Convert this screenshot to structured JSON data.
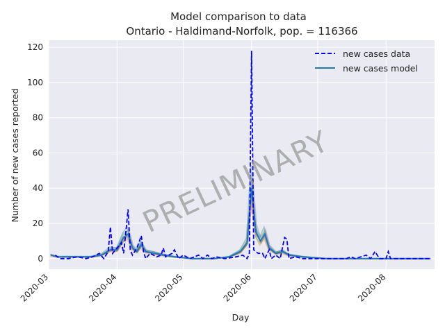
{
  "chart_data": {
    "type": "line",
    "title_line1": "Model comparison to data",
    "title_line2": "Ontario - Haldimand-Norfolk, pop. = 116366",
    "xlabel": "Day",
    "ylabel": "Number of new cases reported",
    "watermark": "PRELIMINARY",
    "x_range": [
      "2020-03-01",
      "2020-08-23"
    ],
    "ylim": [
      -6,
      124
    ],
    "x_ticks": [
      {
        "date": "2020-03-01",
        "label": "2020-03"
      },
      {
        "date": "2020-04-01",
        "label": "2020-04"
      },
      {
        "date": "2020-05-01",
        "label": "2020-05"
      },
      {
        "date": "2020-06-01",
        "label": "2020-06"
      },
      {
        "date": "2020-07-01",
        "label": "2020-07"
      },
      {
        "date": "2020-08-01",
        "label": "2020-08"
      }
    ],
    "y_ticks": [
      0,
      20,
      40,
      60,
      80,
      100,
      120
    ],
    "grid": true,
    "legend_position": "top-right",
    "series": [
      {
        "name": "new cases data",
        "style": "dashed",
        "color": "#0000ff",
        "points": [
          [
            "2020-03-04",
            2
          ],
          [
            "2020-03-06",
            0
          ],
          [
            "2020-03-10",
            0
          ],
          [
            "2020-03-14",
            1
          ],
          [
            "2020-03-18",
            0
          ],
          [
            "2020-03-21",
            1
          ],
          [
            "2020-03-24",
            3
          ],
          [
            "2020-03-26",
            0
          ],
          [
            "2020-03-28",
            4
          ],
          [
            "2020-03-29",
            18
          ],
          [
            "2020-03-30",
            3
          ],
          [
            "2020-04-01",
            6
          ],
          [
            "2020-04-03",
            9
          ],
          [
            "2020-04-04",
            3
          ],
          [
            "2020-04-05",
            15
          ],
          [
            "2020-04-06",
            28
          ],
          [
            "2020-04-07",
            5
          ],
          [
            "2020-04-08",
            2
          ],
          [
            "2020-04-10",
            6
          ],
          [
            "2020-04-12",
            13
          ],
          [
            "2020-04-13",
            4
          ],
          [
            "2020-04-14",
            0
          ],
          [
            "2020-04-16",
            3
          ],
          [
            "2020-04-19",
            1
          ],
          [
            "2020-04-21",
            2
          ],
          [
            "2020-04-22",
            6
          ],
          [
            "2020-04-23",
            1
          ],
          [
            "2020-04-26",
            3
          ],
          [
            "2020-04-27",
            5
          ],
          [
            "2020-04-29",
            0
          ],
          [
            "2020-05-01",
            2
          ],
          [
            "2020-05-04",
            0
          ],
          [
            "2020-05-08",
            2
          ],
          [
            "2020-05-10",
            0
          ],
          [
            "2020-05-12",
            2
          ],
          [
            "2020-05-14",
            0
          ],
          [
            "2020-05-16",
            1
          ],
          [
            "2020-05-20",
            0
          ],
          [
            "2020-05-25",
            1
          ],
          [
            "2020-05-28",
            2
          ],
          [
            "2020-05-30",
            0
          ],
          [
            "2020-05-31",
            3
          ],
          [
            "2020-06-01",
            118
          ],
          [
            "2020-06-02",
            5
          ],
          [
            "2020-06-04",
            3
          ],
          [
            "2020-06-06",
            3
          ],
          [
            "2020-06-07",
            0
          ],
          [
            "2020-06-09",
            5
          ],
          [
            "2020-06-10",
            0
          ],
          [
            "2020-06-12",
            2
          ],
          [
            "2020-06-14",
            0
          ],
          [
            "2020-06-16",
            12
          ],
          [
            "2020-06-17",
            11
          ],
          [
            "2020-06-18",
            0
          ],
          [
            "2020-06-21",
            1
          ],
          [
            "2020-06-24",
            0
          ],
          [
            "2020-07-01",
            0
          ],
          [
            "2020-07-14",
            0
          ],
          [
            "2020-07-16",
            1
          ],
          [
            "2020-07-18",
            0
          ],
          [
            "2020-07-23",
            2
          ],
          [
            "2020-07-25",
            0
          ],
          [
            "2020-07-27",
            4
          ],
          [
            "2020-07-29",
            0
          ],
          [
            "2020-08-01",
            0
          ],
          [
            "2020-08-02",
            4
          ],
          [
            "2020-08-03",
            0
          ],
          [
            "2020-08-21",
            0
          ]
        ]
      },
      {
        "name": "new cases model",
        "style": "solid",
        "color": "#1f77b4",
        "points": [
          [
            "2020-03-02",
            2
          ],
          [
            "2020-03-05",
            1
          ],
          [
            "2020-03-10",
            1
          ],
          [
            "2020-03-15",
            1
          ],
          [
            "2020-03-20",
            1
          ],
          [
            "2020-03-25",
            2
          ],
          [
            "2020-03-29",
            5
          ],
          [
            "2020-04-01",
            5
          ],
          [
            "2020-04-04",
            12
          ],
          [
            "2020-04-06",
            14
          ],
          [
            "2020-04-08",
            6
          ],
          [
            "2020-04-10",
            4
          ],
          [
            "2020-04-12",
            8
          ],
          [
            "2020-04-14",
            4
          ],
          [
            "2020-04-18",
            3
          ],
          [
            "2020-04-22",
            2
          ],
          [
            "2020-04-27",
            1
          ],
          [
            "2020-05-05",
            0
          ],
          [
            "2020-05-15",
            0
          ],
          [
            "2020-05-22",
            1
          ],
          [
            "2020-05-27",
            4
          ],
          [
            "2020-05-30",
            9
          ],
          [
            "2020-06-01",
            40
          ],
          [
            "2020-06-03",
            15
          ],
          [
            "2020-06-05",
            10
          ],
          [
            "2020-06-07",
            14
          ],
          [
            "2020-06-09",
            6
          ],
          [
            "2020-06-12",
            3
          ],
          [
            "2020-06-15",
            4
          ],
          [
            "2020-06-18",
            2
          ],
          [
            "2020-06-24",
            1
          ],
          [
            "2020-07-05",
            0
          ],
          [
            "2020-08-21",
            0
          ]
        ]
      }
    ],
    "ensemble_colors": [
      "#ff7f0e",
      "#2ca02c",
      "#d62728",
      "#9467bd",
      "#8c564b",
      "#e377c2",
      "#bcbd22",
      "#17becf",
      "#7f7f7f",
      "#1f77b4"
    ]
  }
}
